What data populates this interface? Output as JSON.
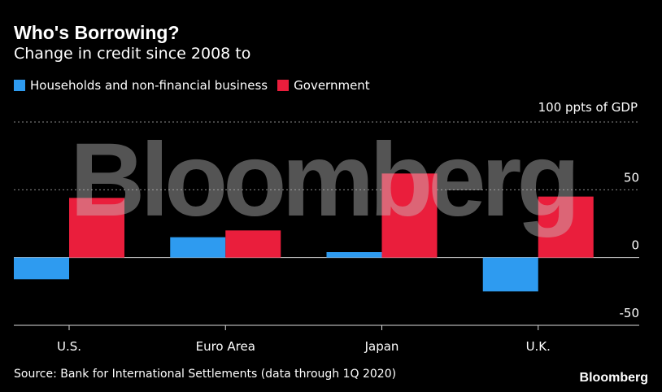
{
  "header": {
    "title": "Who's Borrowing?",
    "subtitle": "Change in credit since 2008 to"
  },
  "legend": {
    "households_label": "Households and non-financial business",
    "government_label": "Government"
  },
  "axis": {
    "unit_label": "100 ppts of GDP"
  },
  "footer": {
    "source": "Source: Bank for International Settlements (data through 1Q 2020)",
    "brand": "Bloomberg"
  },
  "watermark": "Bloomberg",
  "colors": {
    "households": "#2e9bf0",
    "government": "#ea1e3c",
    "background": "#000000",
    "grid": "#8a8a8a"
  },
  "chart_data": {
    "type": "bar",
    "title": "Who's Borrowing?",
    "subtitle": "Change in credit since 2008 to",
    "xlabel": "",
    "ylabel": "100 ppts of GDP",
    "categories": [
      "U.S.",
      "Euro Area",
      "Japan",
      "U.K."
    ],
    "series": [
      {
        "name": "Households and non-financial business",
        "color": "#2e9bf0",
        "values": [
          -16,
          15,
          4,
          -25
        ]
      },
      {
        "name": "Government",
        "color": "#ea1e3c",
        "values": [
          44,
          20,
          62,
          45
        ]
      }
    ],
    "ylim": [
      -50,
      100
    ],
    "yticks": [
      -50,
      0,
      50
    ],
    "ytick_labels": [
      "-50",
      "0",
      "50"
    ],
    "grid": true,
    "legend_position": "top-left"
  }
}
